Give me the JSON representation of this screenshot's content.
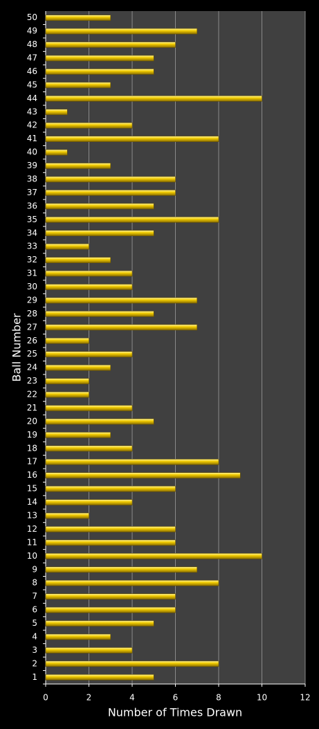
{
  "chart_data": {
    "type": "barh",
    "x_label": "Number of Times Drawn",
    "y_label": "Ball Number",
    "categories": [
      "1",
      "2",
      "3",
      "4",
      "5",
      "6",
      "7",
      "8",
      "9",
      "10",
      "11",
      "12",
      "13",
      "14",
      "15",
      "16",
      "17",
      "18",
      "19",
      "20",
      "21",
      "22",
      "23",
      "24",
      "25",
      "26",
      "27",
      "28",
      "29",
      "30",
      "31",
      "32",
      "33",
      "34",
      "35",
      "36",
      "37",
      "38",
      "39",
      "40",
      "41",
      "42",
      "43",
      "44",
      "45",
      "46",
      "47",
      "48",
      "49",
      "50"
    ],
    "values": [
      5,
      8,
      4,
      3,
      5,
      6,
      6,
      8,
      7,
      10,
      6,
      6,
      2,
      4,
      6,
      9,
      8,
      4,
      3,
      5,
      4,
      2,
      2,
      3,
      4,
      2,
      7,
      5,
      7,
      4,
      4,
      3,
      2,
      5,
      8,
      5,
      6,
      6,
      3,
      1,
      8,
      4,
      1,
      10,
      3,
      5,
      5,
      6,
      7,
      3
    ],
    "color": "#f2cc00",
    "xlim": [
      0,
      12
    ],
    "xticks": [
      0,
      2,
      4,
      6,
      8,
      10,
      12
    ],
    "grid": true
  }
}
